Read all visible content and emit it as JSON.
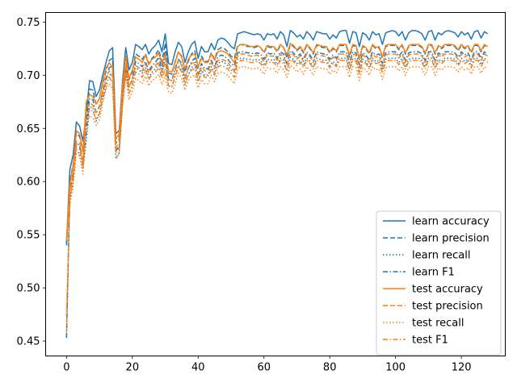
{
  "chart_data": {
    "type": "line",
    "title": "",
    "xlabel": "",
    "ylabel": "",
    "xlim": [
      -6.35,
      133.35
    ],
    "ylim": [
      0.436,
      0.759
    ],
    "xticks": [
      0,
      20,
      40,
      60,
      80,
      100,
      120
    ],
    "yticks": [
      0.45,
      0.5,
      0.55,
      0.6,
      0.65,
      0.7,
      0.75
    ],
    "ytick_labels": [
      "0.45",
      "0.50",
      "0.55",
      "0.60",
      "0.65",
      "0.70",
      "0.75"
    ],
    "grid": false,
    "legend_position": "lower-right",
    "colors": {
      "learn": "#1f77b4",
      "test": "#ff7f0e"
    },
    "series": [
      {
        "name": "learn accuracy",
        "color": "#1f77b4",
        "dash": "solid",
        "values": [
          0.541,
          0.611,
          0.625,
          0.656,
          0.652,
          0.638,
          0.665,
          0.695,
          0.694,
          0.68,
          0.686,
          0.7,
          0.712,
          0.723,
          0.726,
          0.645,
          0.648,
          0.694,
          0.726,
          0.705,
          0.712,
          0.729,
          0.727,
          0.724,
          0.729,
          0.72,
          0.725,
          0.728,
          0.733,
          0.722,
          0.739,
          0.711,
          0.71,
          0.722,
          0.731,
          0.727,
          0.712,
          0.722,
          0.729,
          0.732,
          0.716,
          0.727,
          0.722,
          0.722,
          0.73,
          0.724,
          0.733,
          0.735,
          0.734,
          0.731,
          0.727,
          0.725,
          0.739,
          0.74,
          0.741,
          0.74,
          0.739,
          0.738,
          0.739,
          0.738,
          0.733,
          0.739,
          0.738,
          0.739,
          0.734,
          0.741,
          0.738,
          0.727,
          0.742,
          0.74,
          0.736,
          0.738,
          0.734,
          0.741,
          0.738,
          0.733,
          0.741,
          0.74,
          0.739,
          0.739,
          0.734,
          0.738,
          0.735,
          0.741,
          0.742,
          0.742,
          0.73,
          0.741,
          0.74,
          0.727,
          0.74,
          0.738,
          0.733,
          0.741,
          0.738,
          0.739,
          0.729,
          0.74,
          0.741,
          0.742,
          0.741,
          0.737,
          0.741,
          0.733,
          0.74,
          0.742,
          0.742,
          0.741,
          0.739,
          0.733,
          0.741,
          0.742,
          0.733,
          0.74,
          0.738,
          0.741,
          0.742,
          0.741,
          0.74,
          0.736,
          0.741,
          0.738,
          0.74,
          0.734,
          0.741,
          0.742,
          0.735,
          0.741,
          0.739
        ]
      },
      {
        "name": "learn precision",
        "color": "#1f77b4",
        "dash": "dashed",
        "values": [
          0.54,
          0.601,
          0.616,
          0.646,
          0.642,
          0.628,
          0.655,
          0.687,
          0.686,
          0.672,
          0.679,
          0.692,
          0.704,
          0.714,
          0.716,
          0.636,
          0.64,
          0.685,
          0.716,
          0.696,
          0.703,
          0.72,
          0.718,
          0.715,
          0.72,
          0.711,
          0.716,
          0.719,
          0.724,
          0.713,
          0.73,
          0.702,
          0.701,
          0.713,
          0.722,
          0.718,
          0.703,
          0.713,
          0.72,
          0.723,
          0.707,
          0.718,
          0.713,
          0.713,
          0.721,
          0.715,
          0.724,
          0.726,
          0.725,
          0.722,
          0.718,
          0.716,
          0.728,
          0.729,
          0.728,
          0.727,
          0.727,
          0.726,
          0.727,
          0.726,
          0.721,
          0.727,
          0.726,
          0.727,
          0.722,
          0.728,
          0.726,
          0.716,
          0.729,
          0.727,
          0.723,
          0.726,
          0.721,
          0.728,
          0.725,
          0.72,
          0.728,
          0.727,
          0.726,
          0.726,
          0.721,
          0.725,
          0.722,
          0.728,
          0.728,
          0.728,
          0.717,
          0.728,
          0.727,
          0.715,
          0.727,
          0.725,
          0.72,
          0.728,
          0.725,
          0.726,
          0.716,
          0.727,
          0.728,
          0.728,
          0.728,
          0.724,
          0.728,
          0.72,
          0.727,
          0.728,
          0.728,
          0.728,
          0.726,
          0.72,
          0.728,
          0.728,
          0.72,
          0.727,
          0.725,
          0.728,
          0.728,
          0.728,
          0.727,
          0.723,
          0.728,
          0.725,
          0.727,
          0.721,
          0.728,
          0.728,
          0.722,
          0.728,
          0.726
        ]
      },
      {
        "name": "learn recall",
        "color": "#1f77b4",
        "dash": "dotted",
        "values": [
          0.474,
          0.584,
          0.6,
          0.629,
          0.626,
          0.612,
          0.638,
          0.67,
          0.67,
          0.657,
          0.664,
          0.677,
          0.689,
          0.7,
          0.702,
          0.622,
          0.627,
          0.672,
          0.703,
          0.683,
          0.69,
          0.707,
          0.705,
          0.702,
          0.707,
          0.698,
          0.703,
          0.706,
          0.711,
          0.7,
          0.717,
          0.69,
          0.689,
          0.7,
          0.709,
          0.705,
          0.691,
          0.7,
          0.707,
          0.71,
          0.694,
          0.705,
          0.7,
          0.7,
          0.708,
          0.702,
          0.711,
          0.713,
          0.712,
          0.709,
          0.705,
          0.703,
          0.715,
          0.716,
          0.716,
          0.715,
          0.715,
          0.714,
          0.715,
          0.714,
          0.709,
          0.715,
          0.714,
          0.715,
          0.71,
          0.716,
          0.714,
          0.704,
          0.717,
          0.715,
          0.711,
          0.714,
          0.709,
          0.716,
          0.713,
          0.708,
          0.716,
          0.715,
          0.714,
          0.714,
          0.709,
          0.713,
          0.71,
          0.716,
          0.716,
          0.716,
          0.706,
          0.716,
          0.715,
          0.704,
          0.715,
          0.713,
          0.708,
          0.716,
          0.713,
          0.714,
          0.705,
          0.715,
          0.716,
          0.716,
          0.716,
          0.712,
          0.716,
          0.708,
          0.715,
          0.716,
          0.716,
          0.716,
          0.714,
          0.708,
          0.716,
          0.716,
          0.708,
          0.715,
          0.713,
          0.716,
          0.716,
          0.716,
          0.715,
          0.711,
          0.716,
          0.713,
          0.715,
          0.709,
          0.716,
          0.716,
          0.71,
          0.716,
          0.714
        ]
      },
      {
        "name": "learn F1",
        "color": "#1f77b4",
        "dash": "dashdot",
        "values": [
          0.453,
          0.592,
          0.607,
          0.637,
          0.633,
          0.619,
          0.646,
          0.678,
          0.677,
          0.664,
          0.671,
          0.684,
          0.696,
          0.707,
          0.709,
          0.629,
          0.634,
          0.678,
          0.709,
          0.689,
          0.696,
          0.713,
          0.711,
          0.708,
          0.713,
          0.704,
          0.709,
          0.712,
          0.717,
          0.706,
          0.723,
          0.696,
          0.695,
          0.706,
          0.715,
          0.711,
          0.697,
          0.706,
          0.713,
          0.716,
          0.7,
          0.711,
          0.706,
          0.706,
          0.714,
          0.708,
          0.717,
          0.719,
          0.718,
          0.715,
          0.711,
          0.709,
          0.721,
          0.722,
          0.722,
          0.721,
          0.721,
          0.72,
          0.721,
          0.72,
          0.715,
          0.721,
          0.72,
          0.721,
          0.716,
          0.722,
          0.72,
          0.71,
          0.723,
          0.721,
          0.717,
          0.72,
          0.715,
          0.722,
          0.719,
          0.714,
          0.722,
          0.721,
          0.72,
          0.72,
          0.715,
          0.719,
          0.716,
          0.722,
          0.722,
          0.722,
          0.712,
          0.722,
          0.721,
          0.71,
          0.721,
          0.719,
          0.714,
          0.722,
          0.719,
          0.72,
          0.711,
          0.721,
          0.722,
          0.722,
          0.722,
          0.718,
          0.722,
          0.714,
          0.721,
          0.722,
          0.722,
          0.722,
          0.72,
          0.714,
          0.722,
          0.722,
          0.714,
          0.721,
          0.719,
          0.722,
          0.722,
          0.722,
          0.721,
          0.717,
          0.722,
          0.719,
          0.721,
          0.715,
          0.722,
          0.722,
          0.716,
          0.722,
          0.72
        ]
      },
      {
        "name": "test accuracy",
        "color": "#ff7f0e",
        "dash": "solid",
        "values": [
          0.545,
          0.598,
          0.615,
          0.648,
          0.645,
          0.628,
          0.675,
          0.682,
          0.68,
          0.673,
          0.678,
          0.694,
          0.707,
          0.712,
          0.707,
          0.64,
          0.645,
          0.69,
          0.718,
          0.697,
          0.705,
          0.717,
          0.715,
          0.712,
          0.719,
          0.71,
          0.715,
          0.717,
          0.721,
          0.711,
          0.72,
          0.704,
          0.703,
          0.712,
          0.722,
          0.717,
          0.706,
          0.715,
          0.719,
          0.72,
          0.708,
          0.716,
          0.712,
          0.712,
          0.72,
          0.714,
          0.722,
          0.723,
          0.722,
          0.72,
          0.716,
          0.712,
          0.727,
          0.729,
          0.729,
          0.728,
          0.727,
          0.727,
          0.728,
          0.726,
          0.722,
          0.728,
          0.727,
          0.727,
          0.723,
          0.729,
          0.726,
          0.719,
          0.73,
          0.728,
          0.724,
          0.727,
          0.722,
          0.729,
          0.726,
          0.721,
          0.729,
          0.728,
          0.727,
          0.727,
          0.722,
          0.726,
          0.723,
          0.729,
          0.729,
          0.729,
          0.719,
          0.729,
          0.728,
          0.716,
          0.728,
          0.726,
          0.721,
          0.729,
          0.726,
          0.727,
          0.717,
          0.728,
          0.729,
          0.729,
          0.729,
          0.725,
          0.729,
          0.721,
          0.728,
          0.729,
          0.729,
          0.729,
          0.727,
          0.721,
          0.729,
          0.729,
          0.721,
          0.728,
          0.726,
          0.729,
          0.729,
          0.729,
          0.728,
          0.724,
          0.729,
          0.726,
          0.728,
          0.722,
          0.729,
          0.729,
          0.723,
          0.729,
          0.727
        ]
      },
      {
        "name": "test precision",
        "color": "#ff7f0e",
        "dash": "dashed",
        "values": [
          0.546,
          0.59,
          0.607,
          0.638,
          0.636,
          0.619,
          0.666,
          0.674,
          0.672,
          0.665,
          0.67,
          0.686,
          0.699,
          0.704,
          0.699,
          0.632,
          0.637,
          0.682,
          0.71,
          0.689,
          0.697,
          0.709,
          0.707,
          0.704,
          0.711,
          0.702,
          0.707,
          0.709,
          0.713,
          0.703,
          0.712,
          0.696,
          0.695,
          0.704,
          0.714,
          0.709,
          0.698,
          0.707,
          0.711,
          0.712,
          0.7,
          0.708,
          0.704,
          0.704,
          0.712,
          0.706,
          0.714,
          0.715,
          0.714,
          0.712,
          0.708,
          0.704,
          0.718,
          0.72,
          0.72,
          0.719,
          0.718,
          0.718,
          0.719,
          0.717,
          0.713,
          0.719,
          0.718,
          0.718,
          0.714,
          0.72,
          0.717,
          0.71,
          0.721,
          0.719,
          0.715,
          0.718,
          0.713,
          0.72,
          0.717,
          0.712,
          0.72,
          0.719,
          0.718,
          0.718,
          0.713,
          0.717,
          0.714,
          0.72,
          0.72,
          0.72,
          0.71,
          0.72,
          0.719,
          0.707,
          0.719,
          0.717,
          0.712,
          0.72,
          0.717,
          0.718,
          0.708,
          0.719,
          0.72,
          0.72,
          0.72,
          0.716,
          0.72,
          0.712,
          0.719,
          0.72,
          0.72,
          0.72,
          0.718,
          0.712,
          0.72,
          0.72,
          0.712,
          0.719,
          0.717,
          0.72,
          0.72,
          0.72,
          0.719,
          0.715,
          0.72,
          0.717,
          0.719,
          0.713,
          0.72,
          0.72,
          0.714,
          0.72,
          0.718
        ]
      },
      {
        "name": "test recall",
        "color": "#ff7f0e",
        "dash": "dotted",
        "values": [
          0.48,
          0.578,
          0.595,
          0.626,
          0.624,
          0.607,
          0.654,
          0.662,
          0.66,
          0.653,
          0.658,
          0.674,
          0.687,
          0.692,
          0.687,
          0.621,
          0.626,
          0.67,
          0.698,
          0.677,
          0.685,
          0.697,
          0.695,
          0.692,
          0.699,
          0.69,
          0.695,
          0.697,
          0.701,
          0.691,
          0.7,
          0.684,
          0.683,
          0.692,
          0.702,
          0.697,
          0.686,
          0.695,
          0.699,
          0.7,
          0.688,
          0.696,
          0.692,
          0.692,
          0.7,
          0.694,
          0.702,
          0.703,
          0.702,
          0.7,
          0.696,
          0.692,
          0.706,
          0.708,
          0.708,
          0.707,
          0.706,
          0.706,
          0.707,
          0.705,
          0.701,
          0.707,
          0.706,
          0.706,
          0.702,
          0.708,
          0.705,
          0.698,
          0.709,
          0.707,
          0.703,
          0.706,
          0.701,
          0.708,
          0.705,
          0.7,
          0.708,
          0.707,
          0.706,
          0.706,
          0.701,
          0.705,
          0.702,
          0.708,
          0.708,
          0.708,
          0.698,
          0.708,
          0.707,
          0.695,
          0.707,
          0.705,
          0.7,
          0.708,
          0.705,
          0.706,
          0.696,
          0.707,
          0.708,
          0.708,
          0.708,
          0.704,
          0.708,
          0.7,
          0.707,
          0.708,
          0.708,
          0.708,
          0.706,
          0.7,
          0.708,
          0.708,
          0.7,
          0.707,
          0.705,
          0.708,
          0.708,
          0.708,
          0.707,
          0.703,
          0.708,
          0.705,
          0.707,
          0.701,
          0.708,
          0.708,
          0.702,
          0.708,
          0.706
        ]
      },
      {
        "name": "test F1",
        "color": "#ff7f0e",
        "dash": "dashdot",
        "values": [
          0.458,
          0.584,
          0.601,
          0.632,
          0.63,
          0.613,
          0.66,
          0.668,
          0.666,
          0.659,
          0.664,
          0.68,
          0.693,
          0.698,
          0.693,
          0.627,
          0.632,
          0.676,
          0.704,
          0.683,
          0.691,
          0.703,
          0.701,
          0.698,
          0.705,
          0.696,
          0.701,
          0.703,
          0.707,
          0.697,
          0.706,
          0.69,
          0.689,
          0.698,
          0.708,
          0.703,
          0.692,
          0.701,
          0.705,
          0.706,
          0.694,
          0.702,
          0.698,
          0.698,
          0.706,
          0.7,
          0.708,
          0.709,
          0.708,
          0.706,
          0.702,
          0.698,
          0.712,
          0.714,
          0.714,
          0.713,
          0.712,
          0.712,
          0.713,
          0.711,
          0.707,
          0.713,
          0.712,
          0.712,
          0.708,
          0.714,
          0.711,
          0.704,
          0.715,
          0.713,
          0.709,
          0.712,
          0.707,
          0.714,
          0.711,
          0.706,
          0.714,
          0.713,
          0.712,
          0.712,
          0.707,
          0.711,
          0.708,
          0.714,
          0.714,
          0.714,
          0.704,
          0.714,
          0.713,
          0.701,
          0.713,
          0.711,
          0.706,
          0.714,
          0.711,
          0.712,
          0.702,
          0.713,
          0.714,
          0.714,
          0.714,
          0.71,
          0.714,
          0.706,
          0.713,
          0.714,
          0.714,
          0.714,
          0.712,
          0.706,
          0.714,
          0.714,
          0.706,
          0.713,
          0.711,
          0.714,
          0.714,
          0.714,
          0.713,
          0.709,
          0.714,
          0.711,
          0.713,
          0.707,
          0.714,
          0.714,
          0.708,
          0.714,
          0.712
        ]
      }
    ]
  }
}
